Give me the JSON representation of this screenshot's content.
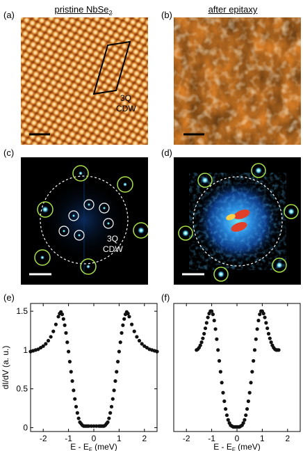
{
  "titles": {
    "left_main": "pristine NbSe",
    "left_sub": "2",
    "right": "after epitaxy"
  },
  "panels": {
    "a": "(a)",
    "b": "(b)",
    "c": "(c)",
    "d": "(d)",
    "e": "(e)",
    "f": "(f)"
  },
  "annotations": {
    "cdw_a_line1": "3Q",
    "cdw_a_line2": "CDW",
    "cdw_c_line1": "3Q",
    "cdw_c_line2": "CDW"
  },
  "colors": {
    "stm_dark": "#7a2e06",
    "stm_mid": "#d1731d",
    "stm_light": "#fff0c8",
    "fft_bg": "#000000",
    "fft_blue": "#1e6fd6",
    "fft_cyan": "#6fe6f0",
    "fft_red": "#e0402a",
    "bragg_circle": "#a8e04a",
    "cdw_circle": "#ffffff"
  },
  "chart_data": [
    {
      "type": "scatter",
      "panel": "(e)",
      "xlabel_main": "E - E",
      "xlabel_sub": "F",
      "xlabel_unit": " (meV)",
      "ylabel": "dI/dV (a. u.)",
      "xlim": [
        -2.5,
        2.5
      ],
      "ylim": [
        -0.05,
        1.6
      ],
      "xticks": [
        -2,
        -1,
        0,
        1,
        2
      ],
      "xtick_labels": [
        "-2",
        "-1",
        "0",
        "1",
        "2"
      ],
      "yticks": [
        0,
        0.5,
        1,
        1.5
      ],
      "ytick_labels": [
        "0",
        "0.5",
        "1",
        "1.5"
      ],
      "series": [
        {
          "x": [
            -2.5,
            -2.4,
            -2.3,
            -2.2,
            -2.1,
            -2.0,
            -1.9,
            -1.8,
            -1.7,
            -1.6,
            -1.5,
            -1.4,
            -1.35,
            -1.3,
            -1.25,
            -1.2,
            -1.15,
            -1.1,
            -1.05,
            -1.0,
            -0.95,
            -0.9,
            -0.85,
            -0.8,
            -0.75,
            -0.7,
            -0.65,
            -0.6,
            -0.55,
            -0.5,
            -0.45,
            -0.4,
            -0.35,
            -0.3,
            -0.25,
            -0.2,
            -0.1,
            0.0,
            0.1,
            0.2,
            0.25,
            0.3,
            0.35,
            0.4,
            0.45,
            0.5,
            0.55,
            0.6,
            0.65,
            0.7,
            0.75,
            0.8,
            0.85,
            0.9,
            0.95,
            1.0,
            1.05,
            1.1,
            1.15,
            1.2,
            1.25,
            1.3,
            1.35,
            1.4,
            1.5,
            1.6,
            1.7,
            1.8,
            1.9,
            2.0,
            2.1,
            2.2,
            2.3,
            2.4,
            2.5
          ],
          "y": [
            0.98,
            0.99,
            1.0,
            1.01,
            1.03,
            1.05,
            1.08,
            1.12,
            1.17,
            1.24,
            1.33,
            1.43,
            1.47,
            1.49,
            1.46,
            1.4,
            1.32,
            1.22,
            1.1,
            0.98,
            0.85,
            0.72,
            0.6,
            0.48,
            0.37,
            0.27,
            0.19,
            0.12,
            0.07,
            0.05,
            0.03,
            0.02,
            0.02,
            0.02,
            0.02,
            0.02,
            0.02,
            0.02,
            0.02,
            0.02,
            0.02,
            0.02,
            0.02,
            0.02,
            0.03,
            0.05,
            0.07,
            0.12,
            0.19,
            0.27,
            0.37,
            0.48,
            0.6,
            0.72,
            0.85,
            0.98,
            1.1,
            1.22,
            1.32,
            1.4,
            1.46,
            1.49,
            1.47,
            1.43,
            1.33,
            1.24,
            1.17,
            1.12,
            1.08,
            1.05,
            1.03,
            1.01,
            1.0,
            0.99,
            0.98
          ]
        }
      ]
    },
    {
      "type": "scatter",
      "panel": "(f)",
      "xlabel_main": "E - E",
      "xlabel_sub": "F",
      "xlabel_unit": " (meV)",
      "ylabel": "",
      "xlim": [
        -2.5,
        2.5
      ],
      "ylim": [
        -0.05,
        1.6
      ],
      "xticks": [
        -2,
        -1,
        0,
        1,
        2
      ],
      "xtick_labels": [
        "-2",
        "-1",
        "0",
        "1",
        "2"
      ],
      "yticks": [],
      "ytick_labels": [],
      "series": [
        {
          "x": [
            -1.6,
            -1.55,
            -1.5,
            -1.45,
            -1.4,
            -1.35,
            -1.3,
            -1.25,
            -1.2,
            -1.15,
            -1.1,
            -1.05,
            -1.0,
            -0.95,
            -0.9,
            -0.85,
            -0.8,
            -0.75,
            -0.7,
            -0.65,
            -0.6,
            -0.55,
            -0.5,
            -0.45,
            -0.4,
            -0.35,
            -0.3,
            -0.25,
            -0.2,
            -0.15,
            -0.1,
            -0.05,
            0.0,
            0.05,
            0.1,
            0.15,
            0.2,
            0.25,
            0.3,
            0.35,
            0.4,
            0.45,
            0.5,
            0.55,
            0.6,
            0.65,
            0.7,
            0.75,
            0.8,
            0.85,
            0.9,
            0.95,
            1.0,
            1.05,
            1.1,
            1.15,
            1.2,
            1.25,
            1.3,
            1.35,
            1.4,
            1.45,
            1.5,
            1.55,
            1.6,
            1.65
          ],
          "y": [
            1.0,
            1.01,
            1.03,
            1.06,
            1.1,
            1.15,
            1.21,
            1.28,
            1.35,
            1.42,
            1.47,
            1.5,
            1.5,
            1.46,
            1.38,
            1.27,
            1.14,
            1.0,
            0.86,
            0.72,
            0.58,
            0.45,
            0.34,
            0.24,
            0.16,
            0.1,
            0.06,
            0.03,
            0.02,
            0.01,
            0.01,
            0.01,
            0.01,
            0.01,
            0.01,
            0.02,
            0.03,
            0.06,
            0.1,
            0.16,
            0.24,
            0.34,
            0.45,
            0.58,
            0.72,
            0.86,
            1.0,
            1.14,
            1.27,
            1.38,
            1.46,
            1.5,
            1.5,
            1.47,
            1.42,
            1.35,
            1.28,
            1.21,
            1.15,
            1.1,
            1.06,
            1.03,
            1.01,
            1.0,
            1.0,
            1.0
          ]
        }
      ]
    }
  ]
}
